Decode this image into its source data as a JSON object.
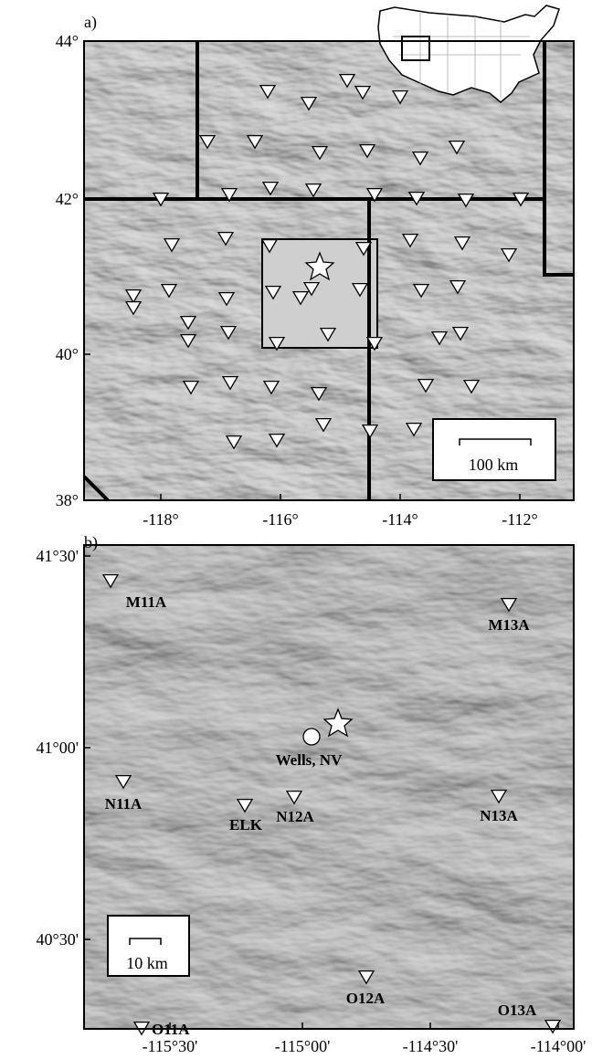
{
  "panel_a": {
    "label": "a)",
    "lat_labels": [
      "44°",
      "42°",
      "40°",
      "38°"
    ],
    "lon_labels": [
      "-118°",
      "-116°",
      "-114°",
      "-112°"
    ],
    "scale_bar": "100 km"
  },
  "panel_b": {
    "label": "b)",
    "lat_labels": [
      "41°30'",
      "41°00'",
      "40°30'"
    ],
    "lon_labels": [
      "-115°30'",
      "-115°00'",
      "-114°30'",
      "-114°00'"
    ],
    "scale_bar": "10 km",
    "town": "Wells, NV",
    "stations": [
      "M11A",
      "M13A",
      "N11A",
      "N12A",
      "N13A",
      "ELK",
      "O11A",
      "O12A",
      "O13A"
    ]
  }
}
